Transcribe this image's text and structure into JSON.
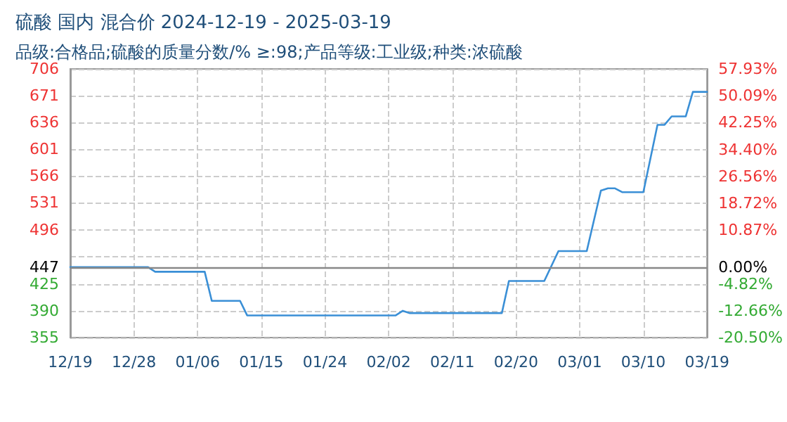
{
  "chart_data": {
    "type": "line",
    "title": "硫酸 国内 混合价 2024-12-19 - 2025-03-19",
    "subtitle": "品级:合格品;硫酸的质量分数/% ≥:98;产品等级:工业级;种类:浓硫酸",
    "x": [
      "2024-12-19",
      "2024-12-30",
      "2024-12-31",
      "2025-01-07",
      "2025-01-08",
      "2025-01-12",
      "2025-01-13",
      "2025-02-03",
      "2025-02-04",
      "2025-02-05",
      "2025-02-18",
      "2025-02-19",
      "2025-02-24",
      "2025-02-26",
      "2025-03-02",
      "2025-03-04",
      "2025-03-05",
      "2025-03-06",
      "2025-03-07",
      "2025-03-10",
      "2025-03-12",
      "2025-03-13",
      "2025-03-14",
      "2025-03-16",
      "2025-03-17",
      "2025-03-19"
    ],
    "series": [
      {
        "color": "#3a8fd6",
        "values": [
          447,
          447,
          441,
          441,
          403,
          403,
          384,
          384,
          390,
          387,
          387,
          429,
          429,
          468,
          468,
          547,
          550,
          550,
          545,
          545,
          633,
          633,
          644,
          644,
          676,
          676
        ]
      }
    ],
    "xlim": [
      "2024-12-19",
      "2025-03-19"
    ],
    "xticks": [
      {
        "value": "2024-12-19",
        "label": "12/19"
      },
      {
        "value": "2024-12-28",
        "label": "12/28"
      },
      {
        "value": "2025-01-06",
        "label": "01/06"
      },
      {
        "value": "2025-01-15",
        "label": "01/15"
      },
      {
        "value": "2025-01-24",
        "label": "01/24"
      },
      {
        "value": "2025-02-02",
        "label": "02/02"
      },
      {
        "value": "2025-02-11",
        "label": "02/11"
      },
      {
        "value": "2025-02-20",
        "label": "02/20"
      },
      {
        "value": "2025-03-01",
        "label": "03/01"
      },
      {
        "value": "2025-03-10",
        "label": "03/10"
      },
      {
        "value": "2025-03-19",
        "label": "03/19"
      }
    ],
    "ylim": [
      355,
      706
    ],
    "yticks": [
      355,
      390,
      425,
      {
        "value": 461,
        "label": null
      },
      496,
      531,
      566,
      601,
      636,
      671,
      706
    ],
    "y2lim": [
      -20.5,
      57.93
    ],
    "y2ticks": [
      {
        "value": -20.5,
        "label": "-20.50%"
      },
      {
        "value": -12.66,
        "label": "-12.66%"
      },
      {
        "value": -4.82,
        "label": "-4.82%"
      },
      {
        "value": 0,
        "label": "0.00%"
      },
      {
        "value": 10.87,
        "label": "10.87%"
      },
      {
        "value": 18.72,
        "label": "18.72%"
      },
      {
        "value": 26.56,
        "label": "26.56%"
      },
      {
        "value": 34.4,
        "label": "34.40%"
      },
      {
        "value": 42.25,
        "label": "42.25%"
      },
      {
        "value": 50.09,
        "label": "50.09%"
      },
      {
        "value": 57.93,
        "label": "57.93%"
      }
    ],
    "ref_lines": [
      {
        "axis": "y",
        "value": 447,
        "label": "447"
      }
    ],
    "grid": true,
    "marker": "none",
    "line_style": "solid"
  }
}
